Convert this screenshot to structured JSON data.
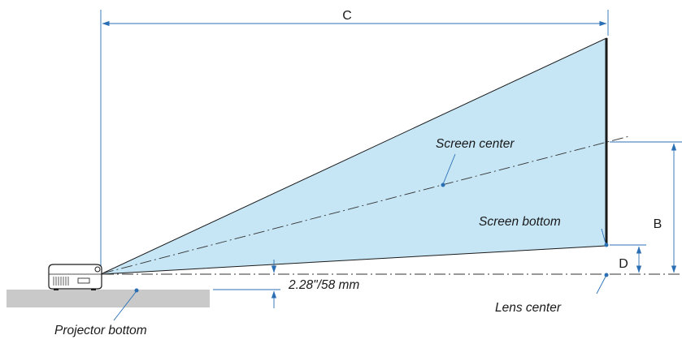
{
  "labels": {
    "c": "C",
    "b": "B",
    "d": "D",
    "screen_center": "Screen center",
    "screen_bottom": "Screen bottom",
    "offset": "2.28\"/58 mm",
    "lens_center": "Lens center",
    "projector_bottom": "Projector bottom"
  },
  "colors": {
    "beam_fill": "#c6e6f6",
    "beam_edge": "#1a1a1a",
    "dimension_line": "#2a6fb4",
    "floor": "#c9c9c9",
    "screen": "#1a1a1a"
  },
  "icons": {
    "projector": "projector-icon",
    "dimension_arrow": "arrowhead",
    "callout_dot": "leader-dot"
  }
}
